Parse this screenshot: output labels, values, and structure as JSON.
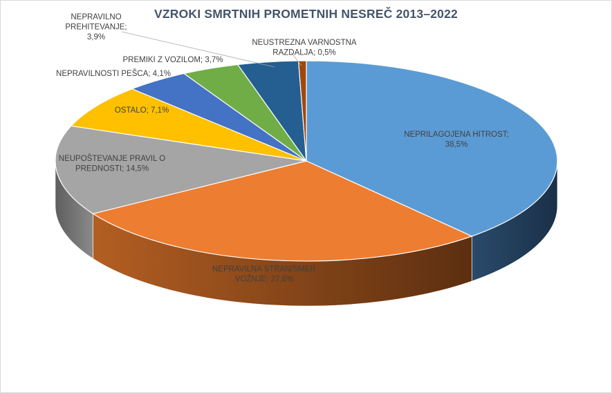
{
  "chart_data": {
    "type": "pie",
    "title": "VZROKI SMRTNIH PROMETNIH NESREČ 2013–2022",
    "slices": [
      {
        "key": "neprilagojena-hitrost",
        "value": 38.5,
        "color": "#5b9bd5",
        "side": "#1f3b57",
        "label_lines": [
          "NEPRILAGOJENA HITROST;",
          "38,5%"
        ]
      },
      {
        "key": "nepravilna-stran",
        "value": 27.6,
        "color": "#ed7d31",
        "side": "#8a4514",
        "label_lines": [
          "NEPRAVILNA STRAN/SMER",
          "VOŽNJE; 27,6%"
        ]
      },
      {
        "key": "neupostevanje-pravil",
        "value": 14.5,
        "color": "#a5a5a5",
        "side": "#676767",
        "label_lines": [
          "NEUPOŠTEVANJE PRAVIL O",
          "PREDNOSTI; 14,5%"
        ]
      },
      {
        "key": "ostalo",
        "value": 7.1,
        "color": "#ffc000",
        "side": "#8f6c00",
        "label_lines": [
          "OSTALO; 7,1%"
        ]
      },
      {
        "key": "nepravilnosti-pesca",
        "value": 4.1,
        "color": "#4472c4",
        "side": "#22396b",
        "label_lines": [
          "NEPRAVILNOSTI PEŠCA; 4,1%"
        ]
      },
      {
        "key": "premiki-z-vozilom",
        "value": 3.7,
        "color": "#70ad47",
        "side": "#3d5f26",
        "label_lines": [
          "PREMIKI Z VOZILOM; 3,7%"
        ]
      },
      {
        "key": "nepravilno-prehitevanje",
        "value": 3.9,
        "color": "#255e91",
        "side": "#123050",
        "label_lines": [
          "NEPRAVILNO",
          "PREHITEVANJE;",
          "3,9%"
        ]
      },
      {
        "key": "neustrezna-varnostna-razdalja",
        "value": 0.5,
        "color": "#9e480e",
        "side": "#5a2807",
        "label_lines": [
          "NEUSTREZNA VARNOSTNA",
          "RAZDALJA; 0,5%"
        ]
      }
    ],
    "legend": "none"
  }
}
